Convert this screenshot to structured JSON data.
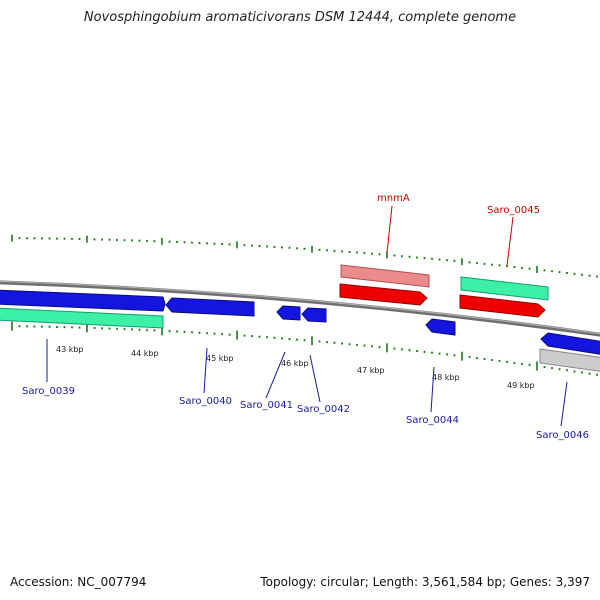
{
  "title": "Novosphingobium aromaticivorans DSM 12444, complete genome",
  "footer": {
    "accession": "Accession: NC_007794",
    "stats": "Topology: circular; Length: 3,561,584 bp; Genes: 3,397"
  },
  "colors": {
    "backbone": "#8a8a8a",
    "tick": "#1a7a1a",
    "cds_blue": "#1515e0",
    "cds_red": "#ee0000",
    "rna_pink": "#e88a8a",
    "mint": "#3cf0a8",
    "gray": "#c8c8c8",
    "label_blue": "#1a1aa0",
    "label_red": "#cc0000"
  },
  "kbp_labels": [
    "43 kbp",
    "44 kbp",
    "45 kbp",
    "46 kbp",
    "47 kbp",
    "48 kbp",
    "49 kbp"
  ],
  "genes": [
    {
      "id": "Saro_0039",
      "label": "Saro_0039",
      "color": "blue"
    },
    {
      "id": "Saro_0040",
      "label": "Saro_0040",
      "color": "blue"
    },
    {
      "id": "Saro_0041",
      "label": "Saro_0041",
      "color": "blue"
    },
    {
      "id": "Saro_0042",
      "label": "Saro_0042",
      "color": "blue"
    },
    {
      "id": "Saro_0044",
      "label": "Saro_0044",
      "color": "blue"
    },
    {
      "id": "Saro_0046",
      "label": "Saro_0046",
      "color": "blue"
    },
    {
      "id": "mnmA",
      "label": "mnmA",
      "color": "red"
    },
    {
      "id": "Saro_0045",
      "label": "Saro_0045",
      "color": "red"
    }
  ]
}
